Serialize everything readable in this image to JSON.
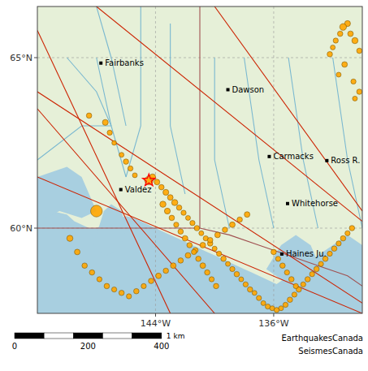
{
  "chart_data": {
    "type": "scatter",
    "xlim": [
      -152,
      -130
    ],
    "ylim": [
      57.5,
      66.5
    ],
    "xticks": [
      {
        "value": -144,
        "label": "144°W"
      },
      {
        "value": -136,
        "label": "136°W"
      }
    ],
    "yticks": [
      {
        "value": 60,
        "label": "60°N"
      },
      {
        "value": 65,
        "label": "65°N"
      }
    ],
    "grid": true,
    "series": [
      {
        "type": "area",
        "color": "#a8cfe0",
        "x": [
          -152,
          -152,
          -151,
          -150,
          -149.5,
          -149,
          -148.5,
          -148,
          -147.5,
          -147,
          -146.5,
          -146,
          -145.5,
          -145,
          -144.5,
          -144,
          -143.5,
          -143,
          -142.5,
          -142,
          -141.5,
          -141,
          -140.5,
          -140,
          -139.5,
          -139,
          -138.5,
          -138,
          -137.5,
          -137,
          -136.5,
          -136,
          -135.5,
          -135,
          -134.5,
          -134,
          -133.5,
          -133,
          -132.5,
          -132,
          -131.5,
          -131,
          -130.5,
          -130,
          -130,
          -130,
          -152
        ],
        "values": [
          57.5,
          60.3,
          60.5,
          60.4,
          60.2,
          60.1,
          60.0,
          60.0,
          60.1,
          60.2,
          60.3,
          60.35,
          60.3,
          60.2,
          60.1,
          60.0,
          59.9,
          59.8,
          59.7,
          59.6,
          59.5,
          59.4,
          59.3,
          59.2,
          59.1,
          59.0,
          58.9,
          58.8,
          58.7,
          58.6,
          58.5,
          58.4,
          58.3,
          58.2,
          58.1,
          58.0,
          57.9,
          57.8,
          57.7,
          57.6,
          57.6,
          57.6,
          57.6,
          57.5,
          57.5,
          57.5,
          57.5
        ]
      },
      {
        "type": "area",
        "color": "#a8cfe0",
        "x": [
          -148.2,
          -147.8,
          -147.3,
          -146.8,
          -146.3,
          -146.0,
          -146.3,
          -147.0,
          -147.5,
          -148.0,
          -148.2
        ],
        "values": [
          59.5,
          59.3,
          59.2,
          59.3,
          59.5,
          60.0,
          60.5,
          60.7,
          60.5,
          59.8,
          59.5
        ]
      },
      {
        "type": "area",
        "color": "#a8cfe0",
        "x": [
          -150.5,
          -151.5,
          -152,
          -152,
          -150,
          -149,
          -148.5,
          -148,
          -149,
          -150.5
        ],
        "values": [
          60.5,
          60.3,
          60.3,
          61.5,
          61.8,
          61.5,
          61.0,
          60.5,
          60.3,
          60.5
        ]
      },
      {
        "type": "area",
        "color": "#a8cfe0",
        "x": [
          -136.5,
          -136,
          -135.5,
          -135,
          -134.5,
          -134,
          -133.5,
          -133,
          -132.5,
          -132,
          -131.5,
          -131,
          -130.5,
          -130,
          -130,
          -131,
          -132,
          -133,
          -134,
          -135,
          -136,
          -136.5
        ],
        "values": [
          57.5,
          57.5,
          57.5,
          57.5,
          57.5,
          57.5,
          57.5,
          57.5,
          57.5,
          57.5,
          57.5,
          57.5,
          57.5,
          57.5,
          59.5,
          59.8,
          59.5,
          59.2,
          58.9,
          58.6,
          58.3,
          57.5
        ]
      },
      {
        "type": "area",
        "color": "#a8cfe0",
        "x": [
          -136.5,
          -135.5,
          -134.5,
          -133.5,
          -133,
          -133.5,
          -134.5,
          -135.5,
          -136.5
        ],
        "values": [
          58.8,
          58.5,
          58.2,
          58.5,
          59.0,
          59.5,
          59.8,
          59.5,
          58.8
        ]
      },
      {
        "type": "line",
        "color": "#7ab8d0",
        "x": [
          -145,
          -145,
          -146
        ],
        "values": [
          66.5,
          63,
          61.5
        ]
      },
      {
        "type": "line",
        "color": "#7ab8d0",
        "x": [
          -148,
          -147,
          -146
        ],
        "values": [
          65,
          63,
          61.5
        ]
      },
      {
        "type": "line",
        "color": "#7ab8d0",
        "x": [
          -143,
          -143,
          -142
        ],
        "values": [
          66,
          63,
          61
        ]
      },
      {
        "type": "line",
        "color": "#7ab8d0",
        "x": [
          -140,
          -140,
          -139
        ],
        "values": [
          65,
          62,
          60
        ]
      },
      {
        "type": "line",
        "color": "#7ab8d0",
        "x": [
          -138,
          -137,
          -136
        ],
        "values": [
          65,
          62,
          60
        ]
      },
      {
        "type": "line",
        "color": "#7ab8d0",
        "x": [
          -135,
          -134,
          -133
        ],
        "values": [
          65,
          62,
          60
        ]
      },
      {
        "type": "line",
        "color": "#7ab8d0",
        "x": [
          -132,
          -131,
          -130
        ],
        "values": [
          65,
          62,
          60
        ]
      },
      {
        "type": "line",
        "color": "#7ab8d0",
        "x": [
          -152,
          -149,
          -147
        ],
        "values": [
          62,
          63,
          63
        ]
      },
      {
        "type": "line",
        "color": "#7ab8d0",
        "x": [
          -150,
          -148,
          -147
        ],
        "values": [
          65,
          64,
          63
        ]
      },
      {
        "type": "line",
        "color": "#7ab8d0",
        "x": [
          -148,
          -147,
          -146
        ],
        "values": [
          66.5,
          65,
          63
        ]
      },
      {
        "type": "line",
        "color": "#a05050",
        "x": [
          -141,
          -141
        ],
        "values": [
          66.5,
          60.0
        ]
      },
      {
        "type": "line",
        "color": "#a05050",
        "x": [
          -152,
          -141
        ],
        "values": [
          60.0,
          60.0
        ]
      },
      {
        "type": "line",
        "color": "#a05050",
        "x": [
          -141,
          -139,
          -137,
          -135,
          -133,
          -131,
          -130
        ],
        "values": [
          60.0,
          59.8,
          59.5,
          59.2,
          58.9,
          58.6,
          58.3
        ]
      },
      {
        "type": "line",
        "color": "#cc2200",
        "x": [
          -152,
          -143
        ],
        "values": [
          65.8,
          57.5
        ]
      },
      {
        "type": "line",
        "color": "#cc2200",
        "x": [
          -152,
          -140
        ],
        "values": [
          63.5,
          57.5
        ]
      },
      {
        "type": "line",
        "color": "#cc2200",
        "x": [
          -148,
          -130
        ],
        "values": [
          66.5,
          60.2
        ]
      },
      {
        "type": "line",
        "color": "#cc2200",
        "x": [
          -152,
          -130
        ],
        "values": [
          64.0,
          57.8
        ]
      },
      {
        "type": "line",
        "color": "#cc2200",
        "x": [
          -152,
          -130
        ],
        "values": [
          61.5,
          57.5
        ]
      },
      {
        "type": "line",
        "color": "#cc2200",
        "x": [
          -140,
          -130
        ],
        "values": [
          66.5,
          60.5
        ]
      },
      {
        "type": "scatter",
        "marker": "circle",
        "color": "#FFA500",
        "x": [
          -148.5,
          -147.4,
          -147.1,
          -146.8,
          -146.3,
          -146.0,
          -145.7,
          -145.4,
          -144.45,
          -144.2,
          -143.9,
          -143.6,
          -143.3,
          -143.0,
          -142.7,
          -142.4,
          -142.1,
          -141.8,
          -141.5,
          -141.2,
          -140.9,
          -140.6,
          -140.3,
          -140.0,
          -139.7,
          -139.4,
          -139.1,
          -138.8,
          -138.5,
          -138.2,
          -137.9,
          -137.6,
          -137.3,
          -137.0,
          -136.7,
          -136.4,
          -136.1,
          -135.8,
          -135.5,
          -135.2,
          -134.9,
          -134.6,
          -134.3,
          -134.0,
          -133.7,
          -133.4,
          -133.1,
          -132.8,
          -132.5,
          -132.2,
          -131.9,
          -131.6,
          -131.3,
          -131.0,
          -130.7,
          -148.0,
          -149.8,
          -149.3,
          -148.8,
          -148.3,
          -147.8,
          -147.3,
          -146.8,
          -146.3,
          -145.8,
          -145.3,
          -144.8,
          -144.3,
          -143.8,
          -143.3,
          -142.8,
          -142.3,
          -141.8,
          -141.3,
          -140.8,
          -140.3,
          -139.8,
          -139.3,
          -138.8,
          -138.3,
          -137.8,
          -130.2,
          -130.5,
          -130.8,
          -131.0,
          -131.3,
          -131.5,
          -131.8,
          -132.0,
          -132.2,
          -131.2,
          -131.6,
          -130.6,
          -130.2,
          -130.5,
          -143.5,
          -143.2,
          -142.9,
          -142.6,
          -142.3,
          -142.0,
          -141.7,
          -141.4,
          -141.1,
          -140.8,
          -140.5,
          -140.2,
          -139.9,
          -136.0,
          -135.7,
          -135.4,
          -135.1,
          -134.8,
          -134.5
        ],
        "values": [
          63.3,
          63.1,
          62.8,
          62.5,
          62.15,
          61.95,
          61.75,
          61.55,
          61.4,
          61.5,
          61.35,
          61.2,
          61.05,
          60.9,
          60.75,
          60.6,
          60.45,
          60.3,
          60.15,
          60.0,
          59.85,
          59.7,
          59.55,
          59.4,
          59.25,
          59.1,
          58.95,
          58.8,
          58.65,
          58.5,
          58.35,
          58.2,
          58.1,
          57.95,
          57.8,
          57.7,
          57.65,
          57.6,
          57.65,
          57.75,
          57.9,
          58.05,
          58.2,
          58.35,
          58.5,
          58.65,
          58.8,
          58.95,
          59.1,
          59.25,
          59.4,
          59.55,
          59.7,
          59.85,
          60.0,
          60.5,
          59.7,
          59.3,
          58.9,
          58.7,
          58.5,
          58.3,
          58.2,
          58.1,
          58.0,
          58.15,
          58.3,
          58.45,
          58.6,
          58.75,
          58.9,
          59.05,
          59.2,
          59.35,
          59.5,
          59.65,
          59.8,
          59.95,
          60.1,
          60.25,
          60.4,
          65.2,
          65.5,
          65.7,
          66.0,
          65.9,
          65.7,
          65.5,
          65.3,
          65.1,
          64.8,
          64.5,
          64.3,
          64.0,
          63.8,
          60.7,
          60.5,
          60.3,
          60.1,
          59.9,
          59.7,
          59.5,
          59.3,
          59.1,
          58.9,
          58.7,
          58.5,
          58.3,
          59.3,
          59.1,
          58.9,
          58.7,
          58.5,
          58.3
        ],
        "sizes": [
          5.5,
          5.7,
          5.4,
          5.2,
          5.3,
          5.5,
          5.4,
          5.3,
          6.5,
          5.8,
          5.6,
          5.5,
          5.7,
          5.6,
          5.8,
          5.5,
          5.4,
          5.3,
          5.4,
          5.5,
          5.3,
          5.4,
          5.5,
          5.3,
          5.4,
          5.5,
          5.3,
          5.4,
          5.5,
          5.3,
          5.4,
          5.5,
          5.3,
          5.4,
          5.3,
          5.4,
          5.3,
          5.4,
          5.3,
          5.4,
          5.5,
          5.4,
          5.5,
          5.4,
          5.5,
          5.4,
          5.5,
          5.4,
          5.5,
          5.4,
          5.5,
          5.4,
          5.5,
          5.4,
          5.5,
          7.2,
          5.8,
          5.6,
          5.5,
          5.5,
          5.4,
          5.5,
          5.4,
          5.5,
          5.4,
          5.5,
          5.4,
          5.5,
          5.6,
          5.5,
          5.6,
          5.5,
          5.6,
          5.5,
          5.6,
          5.5,
          5.6,
          5.5,
          5.6,
          5.5,
          5.6,
          5.5,
          5.8,
          5.6,
          5.7,
          6.0,
          5.5,
          5.4,
          5.3,
          5.5,
          5.6,
          5.3,
          5.4,
          5.5,
          5.3,
          5.8,
          5.7,
          5.5,
          5.4,
          5.5,
          5.6,
          5.5,
          5.4,
          5.5,
          5.6,
          5.5,
          5.4,
          5.5,
          5.5,
          5.4,
          5.5,
          5.4,
          5.5,
          5.4
        ]
      },
      {
        "type": "scatter",
        "marker": "star",
        "color": "red",
        "x": [
          -144.45
        ],
        "values": [
          61.4
        ]
      }
    ],
    "annotations": [
      {
        "text": "Fairbanks",
        "x": -147.7,
        "y": 64.84
      },
      {
        "text": "Dawson",
        "x": -139.1,
        "y": 64.06
      },
      {
        "text": "Carmacks",
        "x": -136.3,
        "y": 62.1
      },
      {
        "text": "Ross R.",
        "x": -132.4,
        "y": 61.98
      },
      {
        "text": "Valdez",
        "x": -146.35,
        "y": 61.13
      },
      {
        "text": "Haines Ju.",
        "x": -135.45,
        "y": 59.24
      },
      {
        "text": "Whitehorse",
        "x": -135.06,
        "y": 60.72
      }
    ],
    "scale_bar": {
      "xlim": [
        0,
        480
      ],
      "xticks": [
        0,
        200,
        400
      ],
      "label": "1 km"
    },
    "credits": [
      "EarthquakesCanada",
      "SeismesCanada"
    ]
  }
}
